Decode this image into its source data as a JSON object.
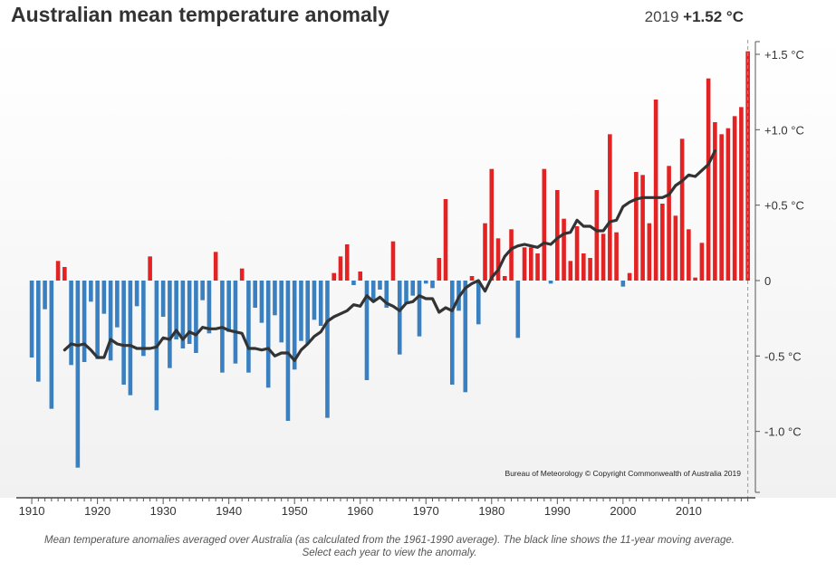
{
  "header": {
    "title": "Australian mean temperature anomaly",
    "current_year": "2019",
    "current_value": "+1.52 °C"
  },
  "credit": "Bureau of Meteorology © Copyright Commonwealth of Australia 2019",
  "caption": "Mean temperature anomalies averaged over Australia (as calculated from the 1961-1990 average). The black line shows the 11-year moving average. Select each year to view the anomaly.",
  "colors": {
    "positive": "#e32323",
    "negative": "#3a80c0",
    "moving_average": "#333333",
    "text": "#333333"
  },
  "chart_data": {
    "type": "bar",
    "title": "Australian mean temperature anomaly",
    "x": [
      1910,
      1911,
      1912,
      1913,
      1914,
      1915,
      1916,
      1917,
      1918,
      1919,
      1920,
      1921,
      1922,
      1923,
      1924,
      1925,
      1926,
      1927,
      1928,
      1929,
      1930,
      1931,
      1932,
      1933,
      1934,
      1935,
      1936,
      1937,
      1938,
      1939,
      1940,
      1941,
      1942,
      1943,
      1944,
      1945,
      1946,
      1947,
      1948,
      1949,
      1950,
      1951,
      1952,
      1953,
      1954,
      1955,
      1956,
      1957,
      1958,
      1959,
      1960,
      1961,
      1962,
      1963,
      1964,
      1965,
      1966,
      1967,
      1968,
      1969,
      1970,
      1971,
      1972,
      1973,
      1974,
      1975,
      1976,
      1977,
      1978,
      1979,
      1980,
      1981,
      1982,
      1983,
      1984,
      1985,
      1986,
      1987,
      1988,
      1989,
      1990,
      1991,
      1992,
      1993,
      1994,
      1995,
      1996,
      1997,
      1998,
      1999,
      2000,
      2001,
      2002,
      2003,
      2004,
      2005,
      2006,
      2007,
      2008,
      2009,
      2010,
      2011,
      2012,
      2013,
      2014,
      2015,
      2016,
      2017,
      2018,
      2019
    ],
    "values": [
      -0.51,
      -0.67,
      -0.19,
      -0.85,
      0.13,
      0.09,
      -0.56,
      -1.24,
      -0.54,
      -0.14,
      -0.52,
      -0.22,
      -0.53,
      -0.31,
      -0.69,
      -0.76,
      -0.17,
      -0.5,
      0.16,
      -0.86,
      -0.24,
      -0.58,
      -0.39,
      -0.45,
      -0.42,
      -0.48,
      -0.13,
      -0.35,
      0.19,
      -0.61,
      -0.34,
      -0.55,
      0.08,
      -0.61,
      -0.18,
      -0.28,
      -0.71,
      -0.23,
      -0.41,
      -0.93,
      -0.59,
      -0.4,
      -0.42,
      -0.26,
      -0.3,
      -0.91,
      0.05,
      0.16,
      0.24,
      -0.03,
      0.06,
      -0.66,
      -0.13,
      -0.06,
      -0.18,
      0.26,
      -0.49,
      -0.15,
      -0.1,
      -0.37,
      -0.02,
      -0.05,
      0.15,
      0.54,
      -0.69,
      -0.2,
      -0.74,
      0.03,
      -0.29,
      0.38,
      0.74,
      0.28,
      0.03,
      0.34,
      -0.38,
      0.22,
      0.22,
      0.18,
      0.74,
      -0.02,
      0.6,
      0.41,
      0.13,
      0.36,
      0.18,
      0.15,
      0.6,
      0.31,
      0.97,
      0.32,
      -0.04,
      0.05,
      0.72,
      0.7,
      0.38,
      1.2,
      0.51,
      0.76,
      0.43,
      0.94,
      0.34,
      0.02,
      0.25,
      1.34,
      1.05,
      0.97,
      1.01,
      1.09,
      1.15,
      1.52
    ],
    "moving_average": {
      "name": "11-year moving average",
      "x": [
        1915,
        1916,
        1917,
        1918,
        1919,
        1920,
        1921,
        1922,
        1923,
        1924,
        1925,
        1926,
        1927,
        1928,
        1929,
        1930,
        1931,
        1932,
        1933,
        1934,
        1935,
        1936,
        1937,
        1938,
        1939,
        1940,
        1941,
        1942,
        1943,
        1944,
        1945,
        1946,
        1947,
        1948,
        1949,
        1950,
        1951,
        1952,
        1953,
        1954,
        1955,
        1956,
        1957,
        1958,
        1959,
        1960,
        1961,
        1962,
        1963,
        1964,
        1965,
        1966,
        1967,
        1968,
        1969,
        1970,
        1971,
        1972,
        1973,
        1974,
        1975,
        1976,
        1977,
        1978,
        1979,
        1980,
        1981,
        1982,
        1983,
        1984,
        1985,
        1986,
        1987,
        1988,
        1989,
        1990,
        1991,
        1992,
        1993,
        1994,
        1995,
        1996,
        1997,
        1998,
        1999,
        2000,
        2001,
        2002,
        2003,
        2004,
        2005,
        2006,
        2007,
        2008,
        2009,
        2010,
        2011,
        2012,
        2013,
        2014
      ],
      "values": [
        -0.46,
        -0.42,
        -0.43,
        -0.42,
        -0.46,
        -0.51,
        -0.51,
        -0.39,
        -0.42,
        -0.43,
        -0.43,
        -0.45,
        -0.45,
        -0.45,
        -0.44,
        -0.38,
        -0.39,
        -0.33,
        -0.39,
        -0.34,
        -0.36,
        -0.31,
        -0.32,
        -0.32,
        -0.31,
        -0.33,
        -0.34,
        -0.35,
        -0.45,
        -0.45,
        -0.46,
        -0.45,
        -0.5,
        -0.48,
        -0.48,
        -0.53,
        -0.46,
        -0.42,
        -0.37,
        -0.34,
        -0.27,
        -0.24,
        -0.22,
        -0.2,
        -0.16,
        -0.17,
        -0.1,
        -0.14,
        -0.11,
        -0.15,
        -0.17,
        -0.2,
        -0.15,
        -0.14,
        -0.1,
        -0.12,
        -0.12,
        -0.21,
        -0.18,
        -0.2,
        -0.11,
        -0.05,
        -0.02,
        0.0,
        -0.07,
        0.02,
        0.07,
        0.16,
        0.21,
        0.23,
        0.24,
        0.23,
        0.22,
        0.25,
        0.24,
        0.28,
        0.31,
        0.32,
        0.4,
        0.36,
        0.36,
        0.33,
        0.33,
        0.39,
        0.4,
        0.49,
        0.52,
        0.54,
        0.55,
        0.55,
        0.55,
        0.55,
        0.57,
        0.63,
        0.66,
        0.7,
        0.69,
        0.73,
        0.77,
        0.86
      ]
    },
    "x_ticks": [
      "1910",
      "1920",
      "1930",
      "1940",
      "1950",
      "1960",
      "1970",
      "1980",
      "1990",
      "2000",
      "2010"
    ],
    "y_ticks": [
      "+1.5 °C",
      "+1.0 °C",
      "+0.5 °C",
      "0",
      "-0.5 °C",
      "-1.0 °C"
    ],
    "y_tick_values": [
      1.5,
      1.0,
      0.5,
      0,
      -0.5,
      -1.0
    ],
    "ylim": [
      -1.41,
      1.59
    ],
    "xlim": [
      1909.3,
      2019.6
    ],
    "grid": false
  }
}
